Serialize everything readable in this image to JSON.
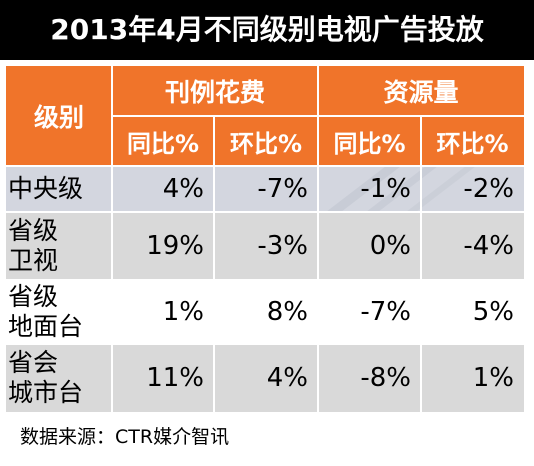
{
  "title": "2013年4月不同级别电视广告投放",
  "header": {
    "level": "级别",
    "group1": "刊例花费",
    "group2": "资源量",
    "sub": [
      "同比%",
      "环比%",
      "同比%",
      "环比%"
    ]
  },
  "rows": [
    {
      "label_lines": [
        "中央级"
      ],
      "values": [
        "4%",
        "-7%",
        "-1%",
        "-2%"
      ]
    },
    {
      "label_lines": [
        "省级",
        "卫视"
      ],
      "values": [
        "19%",
        "-3%",
        "0%",
        "-4%"
      ]
    },
    {
      "label_lines": [
        "省级",
        "地面台"
      ],
      "values": [
        "1%",
        "8%",
        "-7%",
        "5%"
      ]
    },
    {
      "label_lines": [
        "省会",
        "城市台"
      ],
      "values": [
        "11%",
        "4%",
        "-8%",
        "1%"
      ]
    }
  ],
  "source": "数据来源：CTR媒介智讯",
  "colors": {
    "banner": "#000000",
    "header": "#f0742a",
    "shaded_row": "#d9d9d9"
  }
}
